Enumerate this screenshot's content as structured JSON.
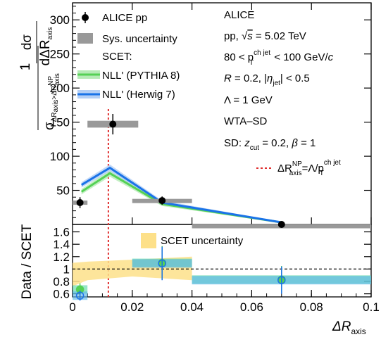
{
  "colors": {
    "data": "#000000",
    "sys": "#999999",
    "pythia": "#55d155",
    "herwig": "#1a73e8",
    "pythia_band": "#b6ebb6",
    "herwig_band": "#b4cff5",
    "np_line": "#e03030",
    "scet_band": "#fde089",
    "ratio_pythia": "#5ed9a6",
    "ratio_herwig": "#5fb8e8"
  },
  "chart_data": [
    {
      "type": "scatter",
      "panel": "top",
      "ylabel_num": "dσ",
      "ylabel_den": "dΔR",
      "ylabel_den_sub": "axis",
      "ylabel_prefactor": "1",
      "ylabel_sigma_sub": "ΔR",
      "ylabel_sigma_sub2": "axis",
      "ylabel_sigma_sub3": ">ΔR",
      "ylabel_sigma_sup": "NP",
      "ylabel_sigma_sub4": "axis",
      "xlim": [
        0,
        0.1
      ],
      "ylim": [
        0,
        325
      ],
      "yticks": [
        "50",
        "100",
        "150",
        "200",
        "250",
        "300"
      ],
      "yticks_values": [
        50,
        100,
        150,
        200,
        250,
        300
      ],
      "series": [
        {
          "name": "ALICE pp",
          "x": [
            0.0025,
            0.0135,
            0.03,
            0.07
          ],
          "y": [
            32,
            147,
            35,
            0
          ],
          "xerr": [
            0.0025,
            0.0085,
            0.01,
            0.03
          ],
          "yerr": [
            8,
            15,
            6,
            0.5
          ],
          "sys": [
            3,
            5,
            2.5,
            0.5
          ]
        },
        {
          "name": "NLL' (PYTHIA 8)",
          "x": [
            0.003,
            0.0125,
            0.03,
            0.07
          ],
          "y": [
            48,
            75,
            30,
            3
          ],
          "band": [
            4,
            5,
            3,
            1
          ]
        },
        {
          "name": "NLL' (Herwig 7)",
          "x": [
            0.003,
            0.0125,
            0.03,
            0.07
          ],
          "y": [
            58,
            83,
            32,
            3
          ],
          "band": [
            4,
            5,
            3,
            1
          ]
        }
      ],
      "legend": {
        "data": "ALICE pp",
        "sys": "Sys. uncertainty",
        "scet": "SCET:",
        "pythia": "NLL' (PYTHIA 8)",
        "herwig": "NLL' (Herwig 7)"
      },
      "np_line_x": 0.012,
      "np_label": "ΔR",
      "np_label_sup": "NP",
      "np_label_sub": "axis",
      "np_label_rhs": "=Λ/p",
      "np_label_rhs_sup": "ch jet",
      "np_label_rhs_sub": "T",
      "annotations": {
        "line1": "ALICE",
        "line2_a": "pp, ",
        "line2_sqrt": "√",
        "line2_s": "s",
        "line2_b": " = 5.02 TeV",
        "line3_a": "80 < p",
        "line3_sup": "ch jet",
        "line3_sub": "T",
        "line3_b": " < 100 GeV/",
        "line3_c": "c",
        "line4_a": "R",
        "line4_b": " = 0.2,  |",
        "line4_eta": "η",
        "line4_sub": "jet",
        "line4_c": "| < 0.5",
        "line5": "Λ = 1 GeV",
        "line6": "WTA–SD",
        "line7_a": "SD: ",
        "line7_z": "z",
        "line7_sub": "cut",
        "line7_b": " = 0.2, ",
        "line7_beta": "β",
        "line7_c": " = 1"
      }
    },
    {
      "type": "scatter",
      "panel": "ratio",
      "ylabel": "Data / SCET",
      "xlabel_a": "ΔR",
      "xlabel_sub": "axis",
      "xlim": [
        0,
        0.1
      ],
      "ylim": [
        0.55,
        1.72
      ],
      "yticks": [
        "0.6",
        "0.8",
        "1",
        "1.2",
        "1.4",
        "1.6"
      ],
      "yticks_values": [
        0.6,
        0.8,
        1.0,
        1.2,
        1.4,
        1.6
      ],
      "xticks": [
        "0",
        "0.02",
        "0.04",
        "0.06",
        "0.08",
        "0.1"
      ],
      "xticks_values": [
        0,
        0.02,
        0.04,
        0.06,
        0.08,
        0.1
      ],
      "scet_uncertainty_label": "SCET uncertainty",
      "scet_band": {
        "x": [
          0,
          0.005,
          0.02,
          0.04
        ],
        "lo": [
          0.72,
          0.82,
          0.88,
          0.82
        ],
        "hi": [
          1.1,
          1.12,
          1.15,
          1.2
        ]
      },
      "series": [
        {
          "name": "NLL' (PYTHIA 8)",
          "x": [
            0.0025,
            0.03,
            0.07
          ],
          "y": [
            0.67,
            1.1,
            0.83
          ],
          "yerr": [
            0.1,
            0.27,
            0.22
          ],
          "xerr": [
            0.0025,
            0.01,
            0.03
          ]
        },
        {
          "name": "NLL' (Herwig 7)",
          "x": [
            0.0025,
            0.03,
            0.07
          ],
          "y": [
            0.57,
            1.09,
            0.82
          ],
          "yerr": [
            0.08,
            0.27,
            0.22
          ],
          "xerr": [
            0.0025,
            0.01,
            0.03
          ]
        }
      ],
      "reference_line": 1.0
    }
  ]
}
